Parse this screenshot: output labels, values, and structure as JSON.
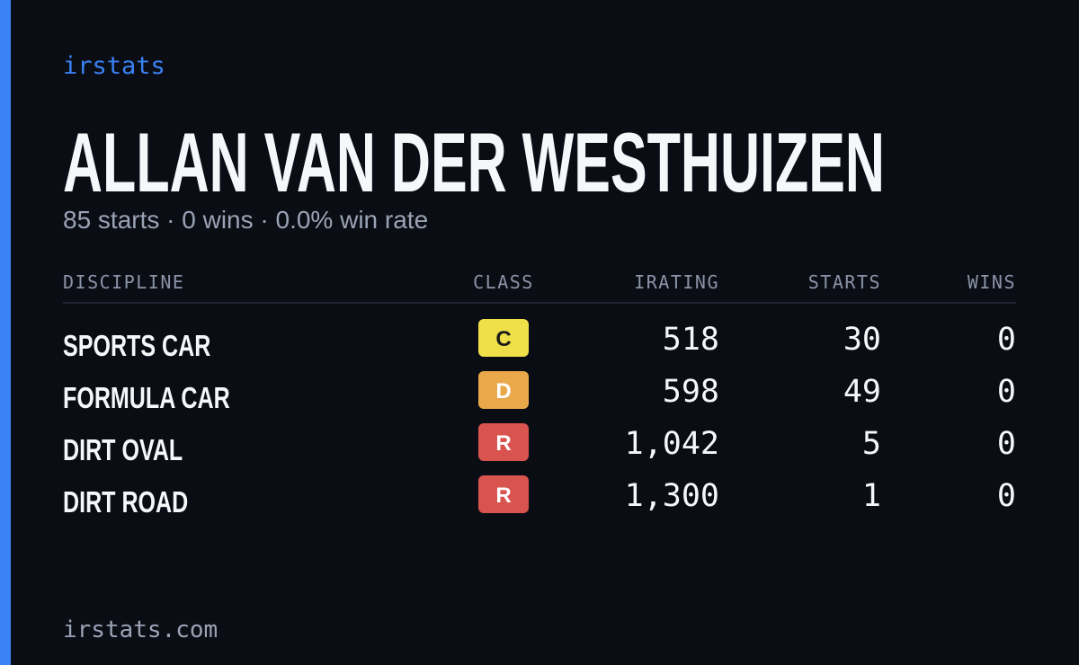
{
  "header": {
    "brand": "irstats",
    "name": "ALLAN VAN DER WESTHUIZEN",
    "summary": "85 starts · 0 wins · 0.0% win rate"
  },
  "table": {
    "columns": [
      "DISCIPLINE",
      "CLASS",
      "IRATING",
      "STARTS",
      "WINS"
    ],
    "rows": [
      {
        "discipline": "SPORTS CAR",
        "class": "C",
        "color": "#efe04a",
        "irating": "518",
        "starts": "30",
        "wins": "0"
      },
      {
        "discipline": "FORMULA CAR",
        "class": "D",
        "color": "#e9a94a",
        "irating": "598",
        "starts": "49",
        "wins": "0"
      },
      {
        "discipline": "DIRT OVAL",
        "class": "R",
        "color": "#d9534f",
        "irating": "1,042",
        "starts": "5",
        "wins": "0"
      },
      {
        "discipline": "DIRT ROAD",
        "class": "R",
        "color": "#d9534f",
        "irating": "1,300",
        "starts": "1",
        "wins": "0"
      }
    ]
  },
  "footer": {
    "site": "irstats.com"
  }
}
